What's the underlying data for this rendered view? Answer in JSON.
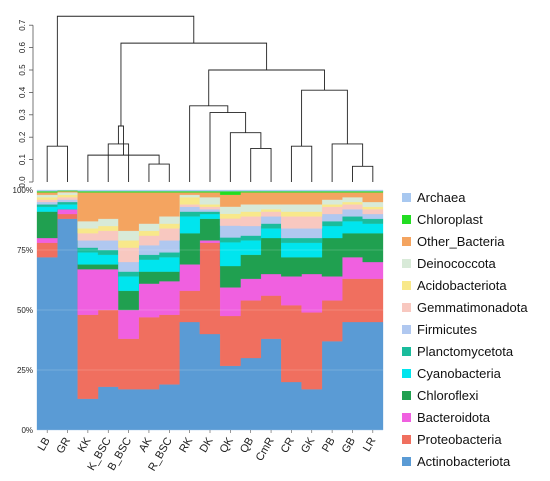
{
  "chart_data": [
    {
      "type": "dendrogram",
      "title": "",
      "ylim": [
        0,
        0.75
      ],
      "yticks": [
        "0.0",
        "0.1",
        "0.2",
        "0.3",
        "0.4",
        "0.5",
        "0.6",
        "0.7"
      ],
      "leaves": [
        "LB",
        "GR",
        "KK",
        "K_BSC",
        "B_BSC",
        "AK",
        "R_BSC",
        "RK",
        "DK",
        "QK",
        "QB",
        "CmR",
        "CR",
        "GK",
        "PB",
        "GB",
        "LR"
      ],
      "merges": [
        {
          "a": "L5",
          "b": "L6",
          "h": 0.08
        },
        {
          "a": "L15",
          "b": "L16",
          "h": 0.07
        },
        {
          "a": "L10",
          "b": "L11",
          "h": 0.15
        },
        {
          "a": "L3",
          "b": "L4",
          "h": 0.17
        },
        {
          "a": "L0",
          "b": "L1",
          "h": 0.16
        },
        {
          "a": "L2",
          "b": "M0",
          "h": 0.12
        },
        {
          "a": "L12",
          "b": "L13",
          "h": 0.16
        },
        {
          "a": "L14",
          "b": "M1",
          "h": 0.17
        },
        {
          "a": "L9",
          "b": "M2",
          "h": 0.22
        },
        {
          "a": "L8",
          "b": "M8",
          "h": 0.31
        },
        {
          "a": "L7",
          "b": "M9",
          "h": 0.34
        },
        {
          "a": "M3",
          "b": "M5",
          "h": 0.25
        },
        {
          "a": "M6",
          "b": "M7",
          "h": 0.41
        },
        {
          "a": "M10",
          "b": "M12",
          "h": 0.5
        },
        {
          "a": "M11",
          "b": "M13",
          "h": 0.62
        },
        {
          "a": "M4",
          "b": "M14",
          "h": 0.74
        }
      ]
    },
    {
      "type": "area",
      "stacked": true,
      "title": "",
      "xlabel": "",
      "ylabel": "",
      "categories": [
        "LB",
        "GR",
        "KK",
        "K_BSC",
        "B_BSC",
        "AK",
        "R_BSC",
        "RK",
        "DK",
        "QK",
        "QB",
        "CmR",
        "CR",
        "GK",
        "PB",
        "GB",
        "LR"
      ],
      "ylim": [
        0,
        100
      ],
      "yticks": [
        "0%",
        "25%",
        "50%",
        "75%",
        "100%"
      ],
      "grid": true,
      "legend_position": "right",
      "series": [
        {
          "name": "Actinobacteriota",
          "color": "#5a9bd5",
          "values": [
            72,
            88,
            13,
            18,
            17,
            17,
            19,
            45,
            40,
            27,
            30,
            38,
            20,
            17,
            37,
            45,
            45
          ]
        },
        {
          "name": "Proteobacteria",
          "color": "#f06f5f",
          "values": [
            6,
            2,
            35,
            32,
            21,
            30,
            29,
            13,
            38,
            21,
            24,
            18,
            32,
            32,
            17,
            18,
            18
          ]
        },
        {
          "name": "Bacteroidota",
          "color": "#f060e0",
          "values": [
            2,
            2,
            19,
            17,
            12,
            14,
            14,
            11,
            1,
            12,
            9,
            9,
            12,
            16,
            10,
            9,
            7
          ]
        },
        {
          "name": "Chloroflexi",
          "color": "#20a050",
          "values": [
            11,
            0,
            2,
            2,
            8,
            5,
            4,
            13,
            9,
            9,
            10,
            15,
            8,
            7,
            16,
            10,
            12
          ]
        },
        {
          "name": "Cyanobacteria",
          "color": "#00e5ee",
          "values": [
            2,
            2,
            5,
            4,
            6,
            5,
            6,
            7,
            2,
            10,
            6,
            4,
            6,
            6,
            5,
            5,
            4
          ]
        },
        {
          "name": "Planctomycetota",
          "color": "#1abc9c",
          "values": [
            1,
            1,
            2,
            2,
            2,
            2,
            2,
            2,
            1,
            2,
            2,
            2,
            2,
            2,
            2,
            2,
            2
          ]
        },
        {
          "name": "Firmicutes",
          "color": "#b0c8f0",
          "values": [
            1,
            1,
            3,
            4,
            4,
            4,
            5,
            2,
            1,
            5,
            4,
            3,
            4,
            4,
            3,
            3,
            2
          ]
        },
        {
          "name": "Gemmatimonadota",
          "color": "#f8c8c0",
          "values": [
            1,
            1,
            3,
            4,
            6,
            4,
            5,
            1,
            1,
            3,
            4,
            2,
            5,
            5,
            3,
            2,
            2
          ]
        },
        {
          "name": "Acidobacteriota",
          "color": "#f8e88a",
          "values": [
            1,
            1,
            2,
            2,
            3,
            2,
            2,
            3,
            1,
            2,
            2,
            1,
            2,
            2,
            1,
            1,
            1
          ]
        },
        {
          "name": "Deinococcota",
          "color": "#d8ead8",
          "values": [
            1,
            1,
            3,
            3,
            4,
            3,
            3,
            1,
            3,
            3,
            3,
            2,
            3,
            3,
            2,
            2,
            2
          ]
        },
        {
          "name": "Other_Bacteria",
          "color": "#f4a460",
          "values": [
            1,
            0.5,
            12,
            11,
            16,
            13,
            10,
            1,
            2,
            5,
            5,
            5,
            5,
            5,
            3,
            2,
            4
          ]
        },
        {
          "name": "Chloroplast",
          "color": "#22dd22",
          "values": [
            0.5,
            0.3,
            0.5,
            0.5,
            0.5,
            0.5,
            0.5,
            0.5,
            0.5,
            1.5,
            0.5,
            0.5,
            0.5,
            0.5,
            0.5,
            0.5,
            0.5
          ]
        },
        {
          "name": "Archaea",
          "color": "#a8c8f0",
          "values": [
            0.5,
            0.2,
            0.5,
            0.5,
            0.5,
            0.5,
            0.5,
            0.5,
            0.5,
            0.5,
            0.5,
            0.5,
            0.5,
            0.5,
            0.5,
            0.5,
            0.5
          ]
        }
      ],
      "legend_order": [
        "Archaea",
        "Chloroplast",
        "Other_Bacteria",
        "Deinococcota",
        "Acidobacteriota",
        "Gemmatimonadota",
        "Firmicutes",
        "Planctomycetota",
        "Cyanobacteria",
        "Chloroflexi",
        "Bacteroidota",
        "Proteobacteria",
        "Actinobacteriota"
      ]
    }
  ]
}
